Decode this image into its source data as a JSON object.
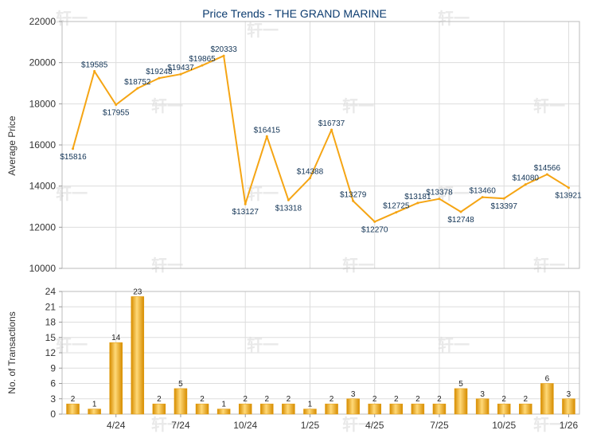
{
  "chart_data": [
    {
      "type": "line",
      "title": "Price Trends - THE GRAND MARINE",
      "xlabel": "",
      "ylabel": "Average Price",
      "ylim": [
        10000,
        22000
      ],
      "yticks": [
        10000,
        12000,
        14000,
        16000,
        18000,
        20000,
        22000
      ],
      "grid": true,
      "series": [
        {
          "values": [
            15816,
            19585,
            17955,
            18752,
            19248,
            19437,
            19865,
            20333,
            13127,
            16415,
            13318,
            14388,
            16737,
            13279,
            12270,
            12725,
            13181,
            13378,
            12748,
            13460,
            13397,
            14080,
            14566,
            13921
          ]
        }
      ],
      "data_labels": [
        "$15816",
        "$19585",
        "$17955",
        "$18752",
        "$19248",
        "$19437",
        "$19865",
        "$20333",
        "$13127",
        "$16415",
        "$13318",
        "$14388",
        "$16737",
        "$13279",
        "$12270",
        "$12725",
        "$13181",
        "$13378",
        "$12748",
        "$13460",
        "$13397",
        "$14080",
        "$14566",
        "$13921"
      ]
    },
    {
      "type": "bar",
      "xlabel": "",
      "ylabel": "No. of Transactions",
      "ylim": [
        0,
        24
      ],
      "yticks": [
        0,
        3,
        6,
        9,
        12,
        15,
        18,
        21,
        24
      ],
      "grid": true,
      "values": [
        2,
        1,
        14,
        23,
        2,
        5,
        2,
        1,
        2,
        2,
        2,
        1,
        2,
        3,
        2,
        2,
        2,
        2,
        5,
        3,
        2,
        2,
        6,
        3
      ],
      "xtick_labels": [
        {
          "label": "4/24",
          "index": 2.5
        },
        {
          "label": "7/24",
          "index": 5.5
        },
        {
          "label": "10/24",
          "index": 8.5
        },
        {
          "label": "1/25",
          "index": 11.5
        },
        {
          "label": "4/25",
          "index": 14.5
        },
        {
          "label": "7/25",
          "index": 17.5
        },
        {
          "label": "10/25",
          "index": 20.5
        },
        {
          "label": "1/26",
          "index": 23.5
        }
      ]
    }
  ],
  "colors": {
    "line": "#f5a514",
    "bar_light": "#fde08a",
    "bar_dark": "#e39a06",
    "axis": "#999999"
  },
  "watermark": "轩一"
}
